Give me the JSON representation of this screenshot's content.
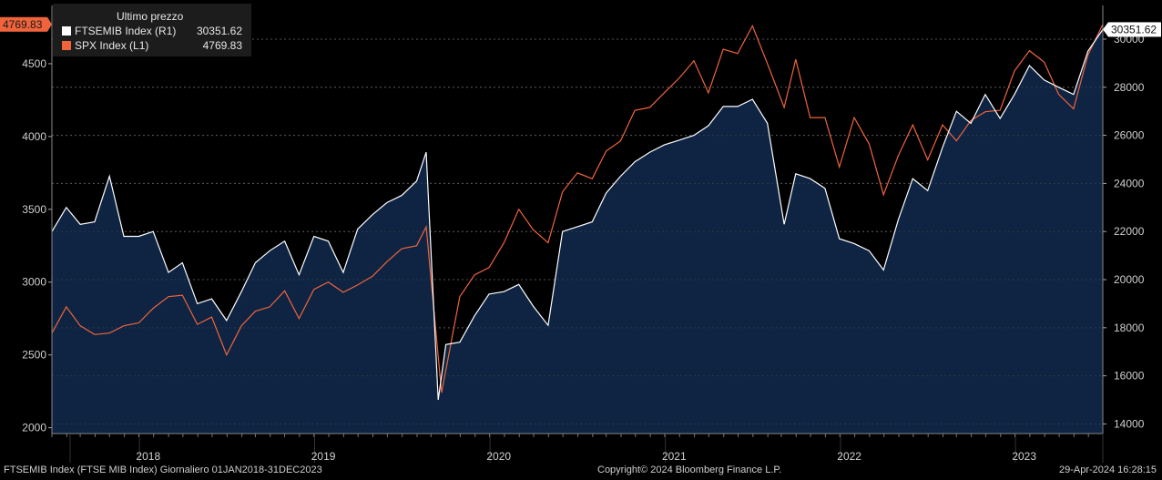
{
  "legend": {
    "header": "Ultimo prezzo",
    "items": [
      {
        "label": "FTSEMIB Index  (R1)",
        "value": "30351.62",
        "color": "#ffffff"
      },
      {
        "label": "SPX Index  (L1)",
        "value": "4769.83",
        "color": "#f0643c"
      }
    ]
  },
  "footer": {
    "left": "FTSEMIB Index (FTSE MIB Index)  Giornaliero 01JAN2018-31DEC2023",
    "center": "Copyright© 2024 Bloomberg Finance L.P.",
    "right": "29-Apr-2024 16:28:15"
  },
  "chart_data": {
    "type": "line",
    "x_ticks": [
      "2018",
      "2019",
      "2020",
      "2021",
      "2022",
      "2023"
    ],
    "xlim": [
      "2018-01-01",
      "2023-12-31"
    ],
    "left_axis": {
      "ticks": [
        2000,
        2500,
        3000,
        3500,
        4000,
        4500
      ],
      "ylim": [
        1960,
        4900
      ]
    },
    "right_axis": {
      "ticks": [
        14000,
        16000,
        18000,
        20000,
        22000,
        24000,
        26000,
        28000,
        30000
      ],
      "ylim": [
        13600,
        31400
      ]
    },
    "last_values": {
      "left": "4769.83",
      "right": "30351.62"
    },
    "series": [
      {
        "name": "FTSEMIB Index  (R1)",
        "axis": "right",
        "color": "#ffffff",
        "fill": "#0e2442",
        "x": [
          "2018-01-01",
          "2018-01-31",
          "2018-03-01",
          "2018-03-31",
          "2018-05-01",
          "2018-05-31",
          "2018-07-01",
          "2018-07-31",
          "2018-09-01",
          "2018-09-30",
          "2018-10-31",
          "2018-11-30",
          "2018-12-31",
          "2019-01-31",
          "2019-03-01",
          "2019-03-31",
          "2019-05-01",
          "2019-05-31",
          "2019-07-01",
          "2019-07-31",
          "2019-08-31",
          "2019-09-30",
          "2019-10-31",
          "2019-11-30",
          "2019-12-31",
          "2020-01-31",
          "2020-02-20",
          "2020-03-16",
          "2020-04-01",
          "2020-04-30",
          "2020-05-31",
          "2020-06-30",
          "2020-07-31",
          "2020-08-31",
          "2020-09-30",
          "2020-10-31",
          "2020-11-30",
          "2020-12-31",
          "2021-01-31",
          "2021-03-01",
          "2021-03-31",
          "2021-04-30",
          "2021-05-31",
          "2021-06-30",
          "2021-07-31",
          "2021-08-31",
          "2021-09-30",
          "2021-10-31",
          "2021-11-30",
          "2021-12-31",
          "2022-01-31",
          "2022-03-07",
          "2022-03-31",
          "2022-04-30",
          "2022-05-31",
          "2022-06-30",
          "2022-07-31",
          "2022-08-31",
          "2022-09-30",
          "2022-10-31",
          "2022-11-30",
          "2022-12-31",
          "2023-01-31",
          "2023-03-01",
          "2023-03-31",
          "2023-04-30",
          "2023-05-31",
          "2023-06-30",
          "2023-07-31",
          "2023-08-31",
          "2023-09-30",
          "2023-10-31",
          "2023-11-30",
          "2023-12-31"
        ],
        "values": [
          22000,
          23000,
          22300,
          22400,
          24300,
          21800,
          21800,
          22000,
          20300,
          20700,
          19000,
          19200,
          18300,
          19500,
          20700,
          21200,
          21600,
          20200,
          21800,
          21600,
          20300,
          22100,
          22700,
          23200,
          23500,
          24100,
          25300,
          15000,
          17300,
          17400,
          18500,
          19400,
          19500,
          19800,
          18900,
          18100,
          22000,
          22200,
          22400,
          23600,
          24300,
          24900,
          25300,
          25600,
          25800,
          26000,
          26400,
          27200,
          27200,
          27500,
          26500,
          22300,
          24400,
          24200,
          23800,
          21700,
          21500,
          21200,
          20400,
          22500,
          24200,
          23700,
          25500,
          27000,
          26500,
          27700,
          26700,
          27700,
          28900,
          28300,
          28000,
          27700,
          29500,
          30400
        ]
      },
      {
        "name": "SPX Index  (L1)",
        "axis": "left",
        "color": "#f0643c",
        "x": [
          "2018-01-01",
          "2018-01-31",
          "2018-03-01",
          "2018-03-31",
          "2018-05-01",
          "2018-05-31",
          "2018-07-01",
          "2018-07-31",
          "2018-09-01",
          "2018-09-30",
          "2018-10-31",
          "2018-11-30",
          "2018-12-31",
          "2019-01-31",
          "2019-03-01",
          "2019-03-31",
          "2019-05-01",
          "2019-05-31",
          "2019-07-01",
          "2019-07-31",
          "2019-08-31",
          "2019-09-30",
          "2019-10-31",
          "2019-11-30",
          "2019-12-31",
          "2020-01-31",
          "2020-02-20",
          "2020-03-23",
          "2020-04-30",
          "2020-05-31",
          "2020-06-30",
          "2020-07-31",
          "2020-08-31",
          "2020-09-30",
          "2020-10-31",
          "2020-11-30",
          "2020-12-31",
          "2021-01-31",
          "2021-03-01",
          "2021-03-31",
          "2021-04-30",
          "2021-05-31",
          "2021-06-30",
          "2021-07-31",
          "2021-08-31",
          "2021-09-30",
          "2021-10-31",
          "2021-11-30",
          "2021-12-31",
          "2022-01-31",
          "2022-03-07",
          "2022-03-31",
          "2022-04-30",
          "2022-05-31",
          "2022-06-30",
          "2022-07-31",
          "2022-08-31",
          "2022-09-30",
          "2022-10-31",
          "2022-11-30",
          "2022-12-31",
          "2023-01-31",
          "2023-03-01",
          "2023-03-31",
          "2023-04-30",
          "2023-05-31",
          "2023-06-30",
          "2023-07-31",
          "2023-08-31",
          "2023-09-30",
          "2023-10-31",
          "2023-11-30",
          "2023-12-31"
        ],
        "values": [
          2650,
          2830,
          2700,
          2640,
          2650,
          2700,
          2720,
          2820,
          2900,
          2910,
          2710,
          2760,
          2500,
          2700,
          2800,
          2830,
          2940,
          2750,
          2950,
          3000,
          2930,
          2980,
          3040,
          3140,
          3230,
          3250,
          3380,
          2240,
          2900,
          3050,
          3100,
          3270,
          3500,
          3360,
          3270,
          3620,
          3750,
          3710,
          3900,
          3970,
          4180,
          4200,
          4300,
          4400,
          4520,
          4300,
          4600,
          4570,
          4760,
          4500,
          4200,
          4530,
          4130,
          4130,
          3790,
          4130,
          3950,
          3600,
          3870,
          4080,
          3840,
          4080,
          3970,
          4110,
          4170,
          4180,
          4450,
          4590,
          4510,
          4290,
          4190,
          4560,
          4770
        ]
      }
    ]
  }
}
